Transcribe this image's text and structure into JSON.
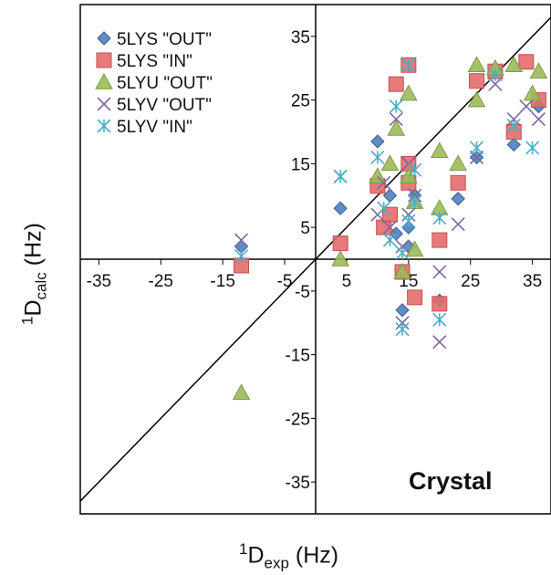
{
  "chart_data": {
    "type": "scatter",
    "xlabel": {
      "sup": "1",
      "main": "D",
      "sub": "exp",
      "unit": "(Hz)"
    },
    "ylabel": {
      "sup": "1",
      "main": "D",
      "sub": "calc",
      "unit": "(Hz)"
    },
    "xlim": [
      -38,
      38
    ],
    "ylim": [
      -40,
      40
    ],
    "x_ticks": [
      -35,
      -25,
      -15,
      -5,
      5,
      15,
      25,
      35
    ],
    "y_ticks": [
      35,
      25,
      15,
      5,
      -5,
      -15,
      -25,
      -35
    ],
    "grid": false,
    "legend_position": "top-left",
    "annotation": "Crystal",
    "reference_line": "y = x",
    "series": [
      {
        "name": "5LYS \"OUT\"",
        "marker": "diamond",
        "color": "#4f81bd",
        "x": [
          -12,
          4,
          10,
          12,
          13,
          14,
          15,
          15,
          16,
          20,
          23,
          26,
          32,
          36
        ],
        "y": [
          2,
          8,
          18.5,
          10,
          4,
          -8,
          2,
          5,
          10,
          -6.5,
          9.5,
          16,
          18,
          24
        ]
      },
      {
        "name": "5LYS \"IN\"",
        "marker": "square",
        "color": "#e46c6c",
        "x": [
          -12,
          4,
          10,
          11,
          12,
          13,
          14,
          15,
          15,
          15,
          16,
          20,
          20,
          23,
          26,
          29,
          32,
          34,
          36
        ],
        "y": [
          -1,
          2.5,
          11.5,
          5,
          7,
          27.5,
          -2,
          30.5,
          15,
          12,
          -6,
          3,
          -7,
          12,
          28,
          29.5,
          20,
          31,
          25
        ]
      },
      {
        "name": "5LYU \"OUT\"",
        "marker": "triangle",
        "color": "#9bbb59",
        "x": [
          -12,
          4,
          10,
          12,
          13,
          14,
          15,
          15,
          16,
          16,
          20,
          20,
          23,
          26,
          26,
          29,
          32,
          35,
          36
        ],
        "y": [
          -21,
          0,
          13,
          15,
          20.5,
          -2,
          26,
          13,
          9,
          1.5,
          17,
          8,
          15,
          30.5,
          25,
          30,
          30.5,
          26,
          29.5
        ]
      },
      {
        "name": "5LYV \"OUT\"",
        "marker": "x",
        "color": "#8064a2",
        "x": [
          -12,
          4,
          10,
          11,
          12,
          13,
          14,
          14,
          15,
          15,
          16,
          20,
          20,
          23,
          26,
          29,
          32,
          34,
          36
        ],
        "y": [
          3,
          13,
          7,
          12,
          5,
          22,
          -10,
          2,
          15,
          7,
          10,
          -2,
          -13,
          5.5,
          16,
          27.5,
          22,
          24,
          22
        ]
      },
      {
        "name": "5LYV \"IN\"",
        "marker": "asterisk",
        "color": "#4bacc6",
        "x": [
          -12,
          4,
          10,
          11,
          12,
          13,
          14,
          14,
          15,
          15,
          16,
          16,
          20,
          20,
          26,
          29,
          32,
          35
        ],
        "y": [
          0.5,
          13,
          16,
          8,
          3,
          24,
          -11,
          1,
          30.5,
          6,
          14,
          9,
          -9.5,
          6.5,
          17.5,
          29,
          21,
          17.5
        ]
      }
    ]
  }
}
